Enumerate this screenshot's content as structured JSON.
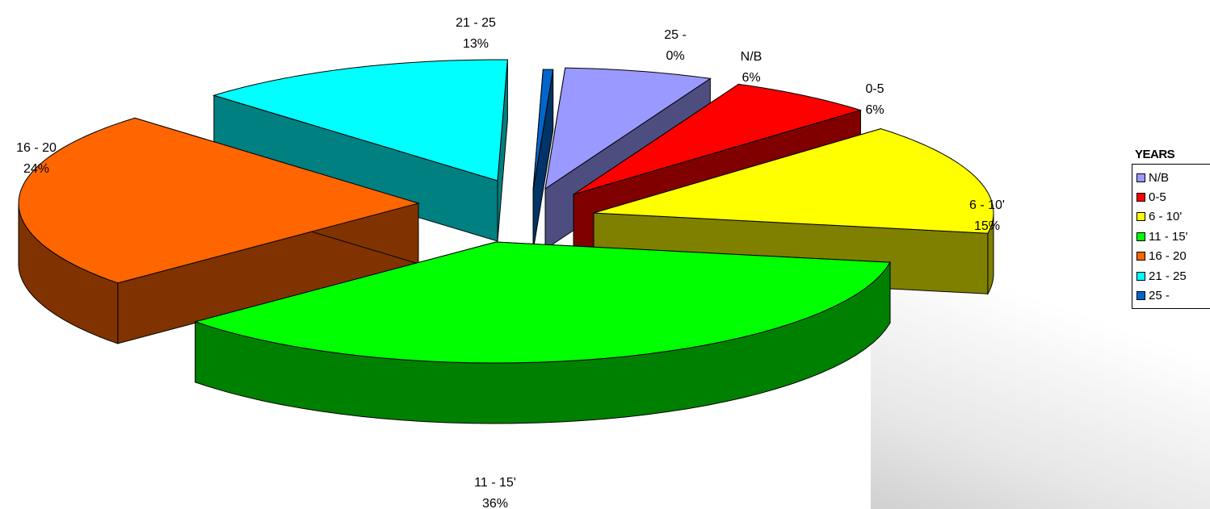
{
  "chart_data": {
    "type": "pie",
    "style": "3d-exploded",
    "legend_title": "YEARS",
    "legend_placement": "right",
    "slices": [
      {
        "name": "N/B",
        "value": 6,
        "label_pct": "6%",
        "color": "#9999ff"
      },
      {
        "name": "0-5",
        "value": 6,
        "label_pct": "6%",
        "color": "#ff0000"
      },
      {
        "name": "6 - 10'",
        "value": 15,
        "label_pct": "15%",
        "color": "#ffff00"
      },
      {
        "name": "11 - 15'",
        "value": 36,
        "label_pct": "36%",
        "color": "#00ff00"
      },
      {
        "name": "16 - 20",
        "value": 24,
        "label_pct": "24%",
        "color": "#ff6600"
      },
      {
        "name": "21 - 25",
        "value": 13,
        "label_pct": "13%",
        "color": "#00ffff"
      },
      {
        "name": "25 -",
        "value": 0.4,
        "label_pct": "0%",
        "color": "#0066cc"
      }
    ]
  }
}
